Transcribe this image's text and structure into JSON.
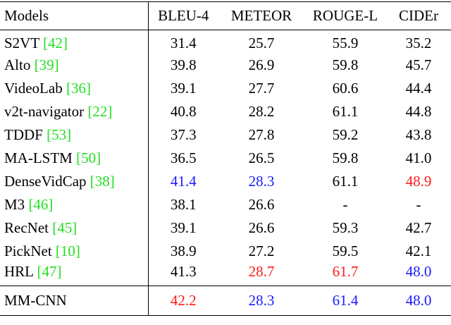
{
  "table": {
    "header": [
      "Models",
      "BLEU-4",
      "METEOR",
      "ROUGE-L",
      "CIDEr"
    ],
    "rows": [
      {
        "model": "S2VT",
        "ref": "[42]",
        "values": [
          "31.4",
          "25.7",
          "55.9",
          "35.2"
        ],
        "colors": [
          "#000000",
          "#000000",
          "#000000",
          "#000000"
        ]
      },
      {
        "model": "Alto",
        "ref": "[39]",
        "values": [
          "39.8",
          "26.9",
          "59.8",
          "45.7"
        ],
        "colors": [
          "#000000",
          "#000000",
          "#000000",
          "#000000"
        ]
      },
      {
        "model": "VideoLab",
        "ref": "[36]",
        "values": [
          "39.1",
          "27.7",
          "60.6",
          "44.4"
        ],
        "colors": [
          "#000000",
          "#000000",
          "#000000",
          "#000000"
        ]
      },
      {
        "model": "v2t-navigator",
        "ref": "[22]",
        "values": [
          "40.8",
          "28.2",
          "61.1",
          "44.8"
        ],
        "colors": [
          "#000000",
          "#000000",
          "#000000",
          "#000000"
        ]
      },
      {
        "model": "TDDF",
        "ref": "[53]",
        "values": [
          "37.3",
          "27.8",
          "59.2",
          "43.8"
        ],
        "colors": [
          "#000000",
          "#000000",
          "#000000",
          "#000000"
        ]
      },
      {
        "model": "MA-LSTM",
        "ref": "[50]",
        "values": [
          "36.5",
          "26.5",
          "59.8",
          "41.0"
        ],
        "colors": [
          "#000000",
          "#000000",
          "#000000",
          "#000000"
        ]
      },
      {
        "model": "DenseVidCap",
        "ref": "[38]",
        "values": [
          "41.4",
          "28.3",
          "61.1",
          "48.9"
        ],
        "colors": [
          "#1a1aff",
          "#1a1aff",
          "#000000",
          "#ff1a1a"
        ]
      },
      {
        "model": "M3",
        "ref": "[46]",
        "values": [
          "38.1",
          "26.6",
          "-",
          "-"
        ],
        "colors": [
          "#000000",
          "#000000",
          "#000000",
          "#000000"
        ]
      },
      {
        "model": "RecNet",
        "ref": "[45]",
        "values": [
          "39.1",
          "26.6",
          "59.3",
          "42.7"
        ],
        "colors": [
          "#000000",
          "#000000",
          "#000000",
          "#000000"
        ]
      },
      {
        "model": "PickNet",
        "ref": "[10]",
        "values": [
          "38.9",
          "27.2",
          "59.5",
          "42.1"
        ],
        "colors": [
          "#000000",
          "#000000",
          "#000000",
          "#000000"
        ]
      },
      {
        "model": "HRL",
        "ref": "[47]",
        "values": [
          "41.3",
          "28.7",
          "61.7",
          "48.0"
        ],
        "colors": [
          "#000000",
          "#ff1a1a",
          "#ff1a1a",
          "#1a1aff"
        ]
      }
    ],
    "ours": {
      "model": "MM-CNN",
      "values": [
        "42.2",
        "28.3",
        "61.4",
        "48.0"
      ],
      "colors": [
        "#ff1a1a",
        "#1a1aff",
        "#1a1aff",
        "#1a1aff"
      ]
    }
  }
}
